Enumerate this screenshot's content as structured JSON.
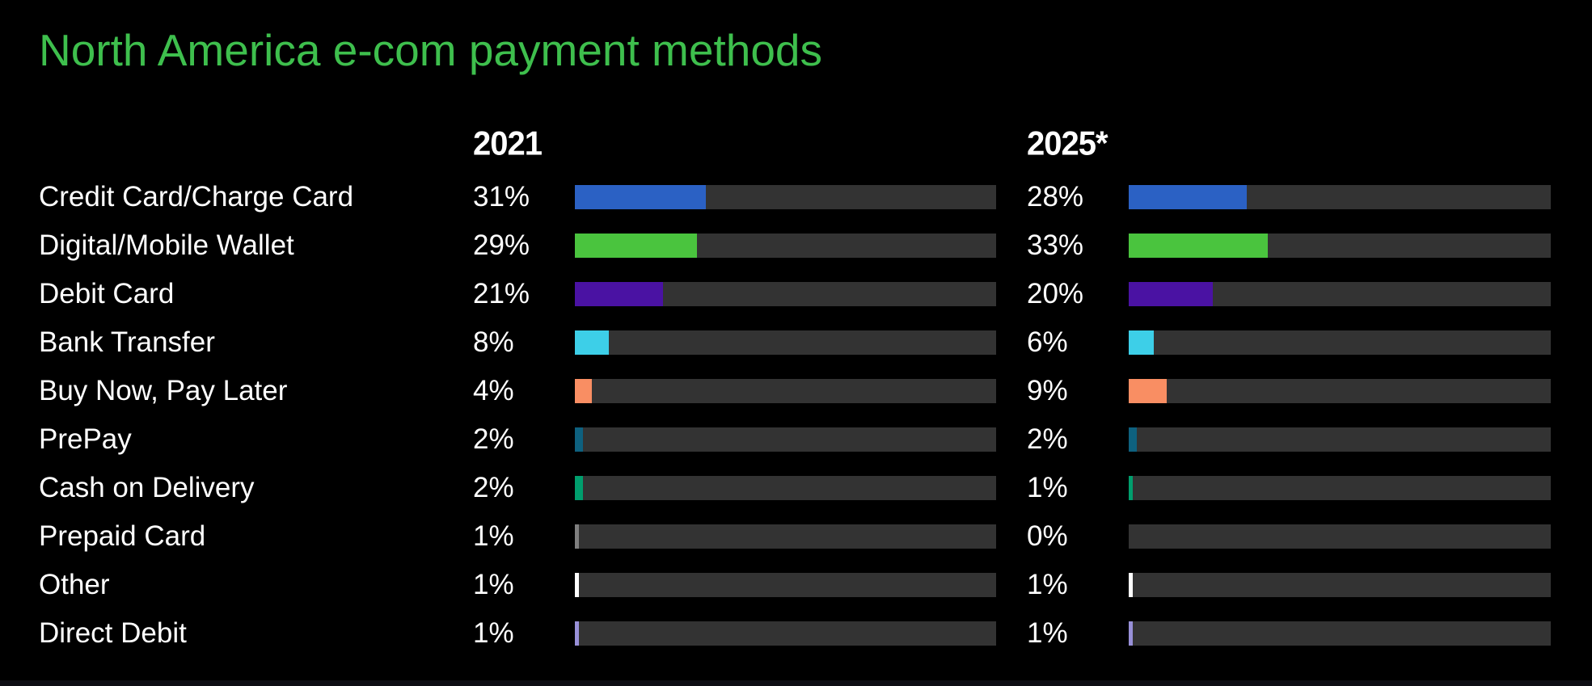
{
  "title": "North America e-com payment methods",
  "colors": {
    "background": "#000000",
    "title_green": "#3ebf4d",
    "text_white": "#ffffff",
    "bar_track": "#333333"
  },
  "chart_data": {
    "type": "bar",
    "orientation": "horizontal",
    "title": "North America e-com payment methods",
    "categories": [
      "Credit Card/Charge Card",
      "Digital/Mobile Wallet",
      "Debit Card",
      "Bank Transfer",
      "Buy Now, Pay Later",
      "PrePay",
      "Cash on Delivery",
      "Prepaid Card",
      "Other",
      "Direct Debit"
    ],
    "series": [
      {
        "name": "2021",
        "values": [
          31,
          29,
          21,
          8,
          4,
          2,
          2,
          1,
          1,
          1
        ]
      },
      {
        "name": "2025*",
        "values": [
          28,
          33,
          20,
          6,
          9,
          2,
          1,
          0,
          1,
          1
        ]
      }
    ],
    "value_suffix": "%",
    "xlim": [
      0,
      100
    ],
    "grid": false,
    "legend_position": "column-headers",
    "bar_colors": [
      "#2b61c4",
      "#4ac43e",
      "#4a12a3",
      "#3dcfe8",
      "#f98e63",
      "#0e617f",
      "#009e6d",
      "#7f7f7f",
      "#ffffff",
      "#9890d8"
    ],
    "track_color": "#333333",
    "background": "#000000"
  }
}
